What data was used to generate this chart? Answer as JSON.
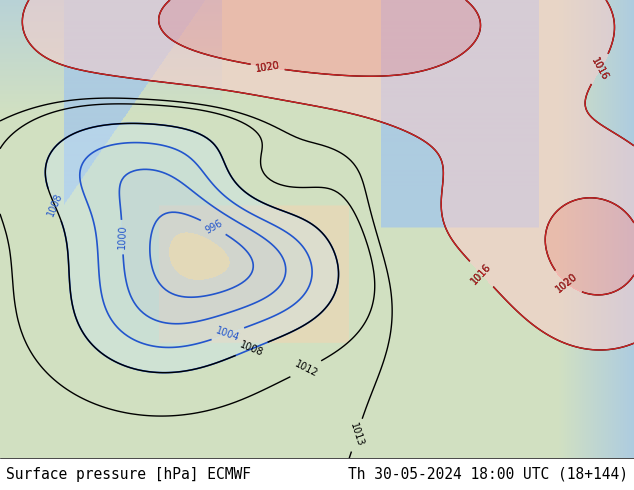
{
  "title_left": "Surface pressure [hPa] ECMWF",
  "title_right": "Th 30-05-2024 18:00 UTC (18+144)",
  "bg_color": "#e8f0e8",
  "text_color": "#000000",
  "title_fontsize": 10.5,
  "fig_width": 6.34,
  "fig_height": 4.9,
  "dpi": 100,
  "bottom_bar_color": "#d8d8d8",
  "bottom_bar_height": 0.065,
  "map_bg": "#c8dfc8",
  "land_color": "#dde8cc",
  "ocean_color": "#b0c8e0"
}
